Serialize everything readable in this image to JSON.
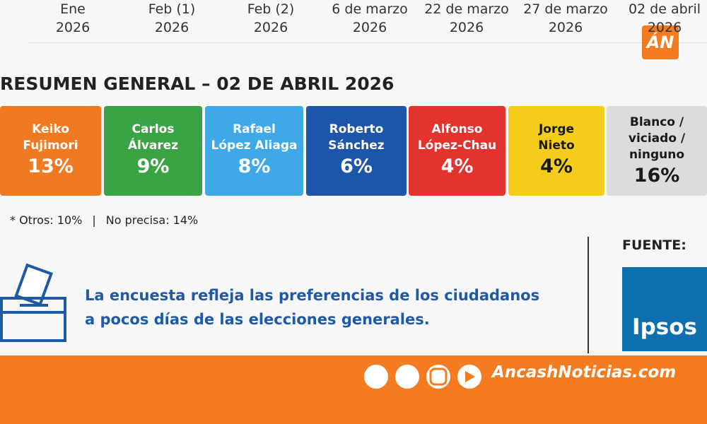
{
  "header": {
    "columns": [
      {
        "line1": "Ene",
        "line2": "2026"
      },
      {
        "line1": "Feb (1)",
        "line2": "2026"
      },
      {
        "line1": "Feb (2)",
        "line2": "2026"
      },
      {
        "line1": "6 de marzo",
        "line2": "2026"
      },
      {
        "line1": "22 de marzo",
        "line2": "2026"
      },
      {
        "line1": "27 de marzo",
        "line2": "2026"
      },
      {
        "line1": "02 de abril",
        "line2": "2026"
      }
    ],
    "logo": "ÁN"
  },
  "summary": {
    "title": "RESUMEN GENERAL – 02 DE ABRIL 2026",
    "cards": [
      {
        "name": [
          "Keiko",
          "Fujimori"
        ],
        "value": "13%",
        "color": "#ef7a22",
        "text_color": "#ffffff"
      },
      {
        "name": [
          "Carlos",
          "Álvarez"
        ],
        "value": "9%",
        "color": "#3aa445",
        "text_color": "#ffffff"
      },
      {
        "name": [
          "Rafael",
          "López Aliaga"
        ],
        "value": "8%",
        "color": "#3fa9e8",
        "text_color": "#ffffff"
      },
      {
        "name": [
          "Roberto",
          "Sánchez"
        ],
        "value": "6%",
        "color": "#1d55a8",
        "text_color": "#ffffff"
      },
      {
        "name": [
          "Alfonso",
          "López-Chau"
        ],
        "value": "4%",
        "color": "#e2332f",
        "text_color": "#ffffff"
      },
      {
        "name": [
          "Jorge",
          "Nieto"
        ],
        "value": "4%",
        "color": "#f6cc1c",
        "text_color": "#1a1a1a"
      },
      {
        "name": [
          "Blanco /",
          "viciado /",
          "ninguno"
        ],
        "value": "16%",
        "color": "#dcdcdc",
        "text_color": "#1a1a1a"
      }
    ],
    "note": [
      "* Otros: 10%",
      "|",
      "No precisa: 14%"
    ]
  },
  "message": [
    "La encuesta refleja las preferencias de los ciudadanos",
    "a pocos días de las elecciones generales."
  ],
  "source": {
    "label": "FUENTE:",
    "logo": "Ipsos"
  },
  "footer": {
    "site": "AncashNoticias.com"
  }
}
